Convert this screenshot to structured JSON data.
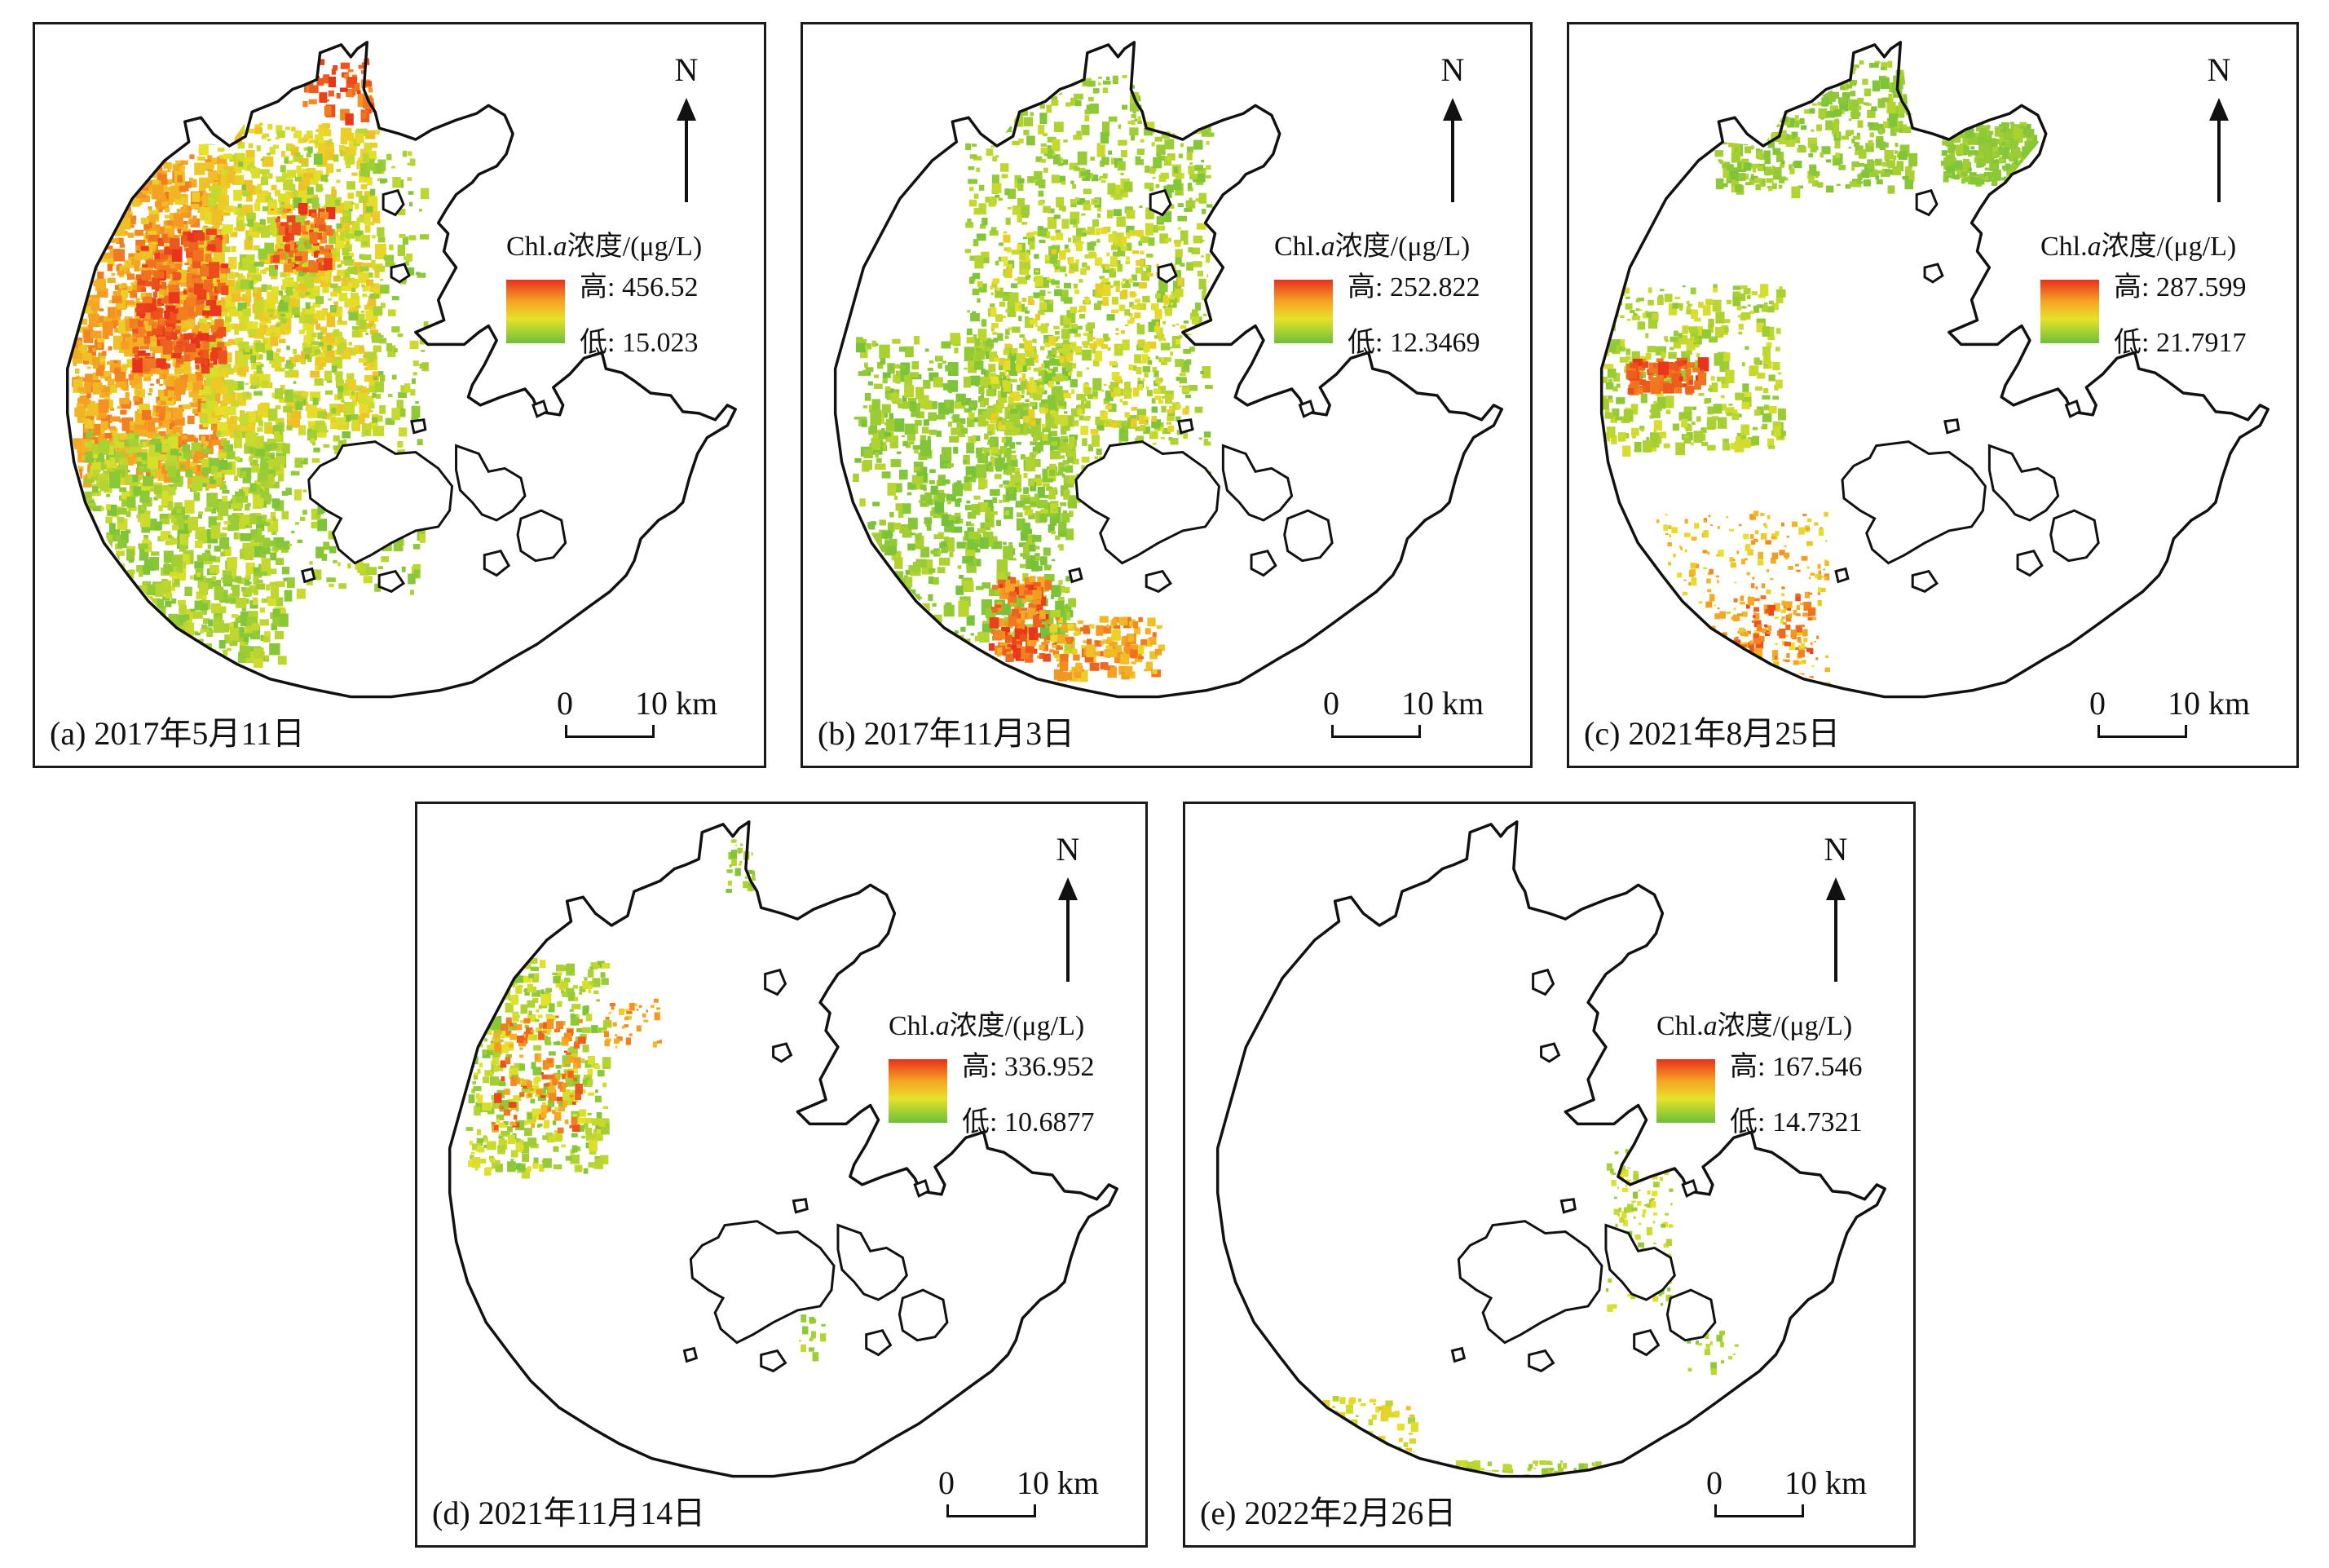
{
  "figure": {
    "colors": {
      "high": "#e8301c",
      "mid_high": "#f6a623",
      "mid_low": "#e6e22a",
      "low": "#6cbf3b",
      "outline": "#111111"
    },
    "north_label": "N",
    "scale": {
      "zero": "0",
      "distance": "10 km"
    },
    "legend_title_prefix": "Chl.",
    "legend_title_italic": "a",
    "legend_title_suffix": "浓度/(μg/L)",
    "high_prefix": "高: ",
    "low_prefix": "低: ",
    "panels": [
      {
        "caption": "(a) 2017年5月11日",
        "high": "456.52",
        "low": "15.023",
        "coverage": "dense"
      },
      {
        "caption": "(b) 2017年11月3日",
        "high": "252.822",
        "low": "12.3469",
        "coverage": "dense"
      },
      {
        "caption": "(c) 2021年8月25日",
        "high": "287.599",
        "low": "21.7917",
        "coverage": "partial"
      },
      {
        "caption": "(d) 2021年11月14日",
        "high": "336.952",
        "low": "10.6877",
        "coverage": "sparse"
      },
      {
        "caption": "(e) 2022年2月26日",
        "high": "167.546",
        "low": "14.7321",
        "coverage": "sparse"
      }
    ]
  }
}
